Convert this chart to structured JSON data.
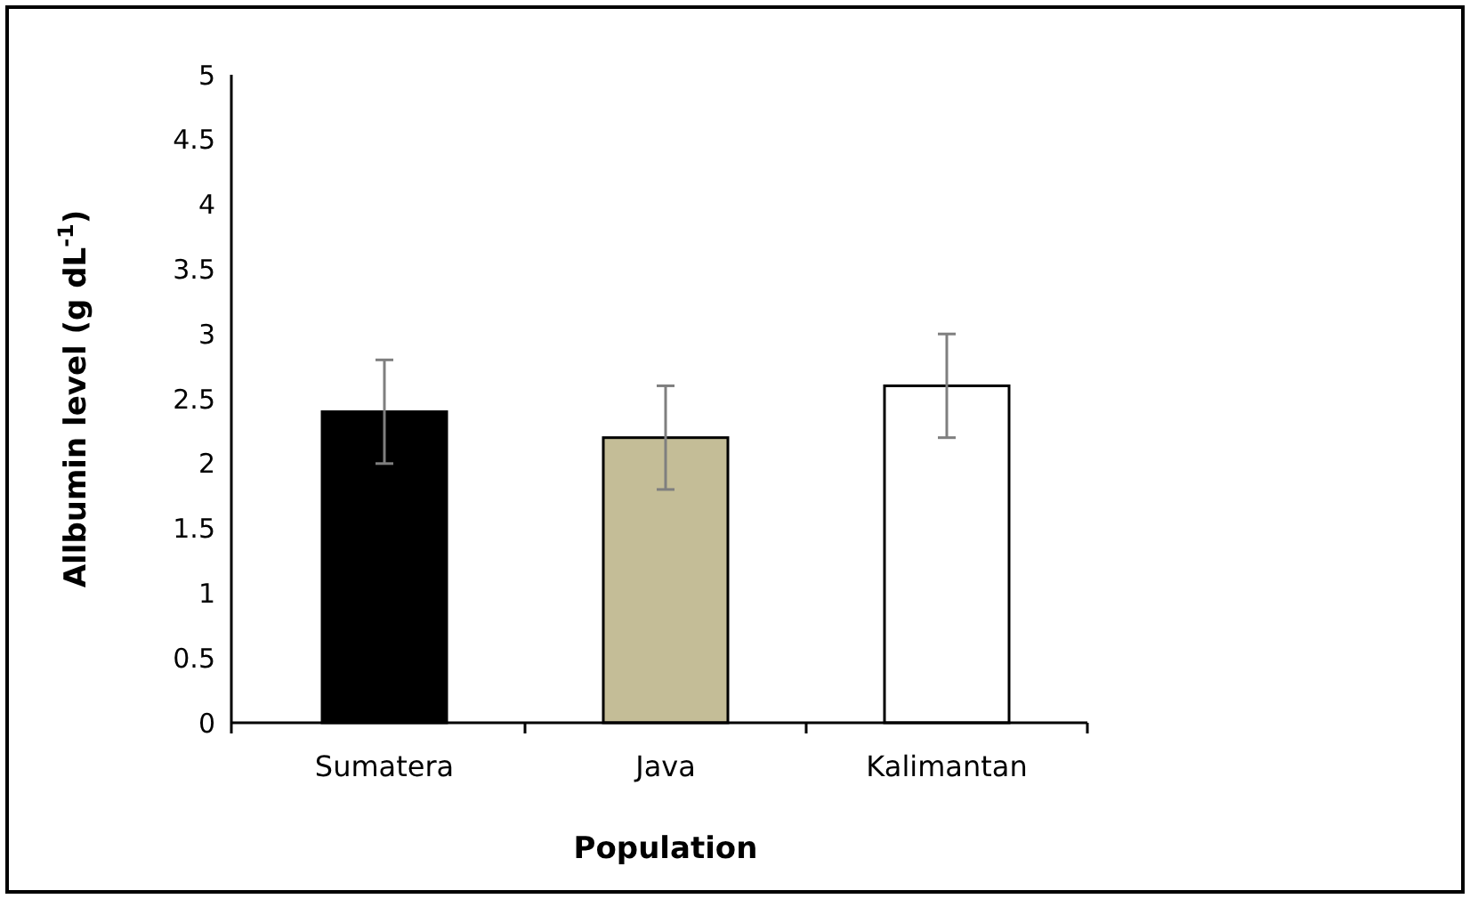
{
  "chart_data": {
    "type": "bar",
    "xlabel": "Population",
    "ylabel": "Allbumin level (g dL$^{-1}$)",
    "categories": [
      "Sumatera",
      "Java",
      "Kalimantan"
    ],
    "values": [
      2.4,
      2.2,
      2.6
    ],
    "colors": [
      "#000000",
      "#c4bd97",
      "#ffffff"
    ],
    "errors": [
      0.4,
      0.4,
      0.4
    ],
    "ylim": [
      0,
      5
    ],
    "yticks": [
      0,
      0.5,
      1,
      1.5,
      2,
      2.5,
      3,
      3.5,
      4,
      4.5,
      5
    ],
    "grid": false
  }
}
